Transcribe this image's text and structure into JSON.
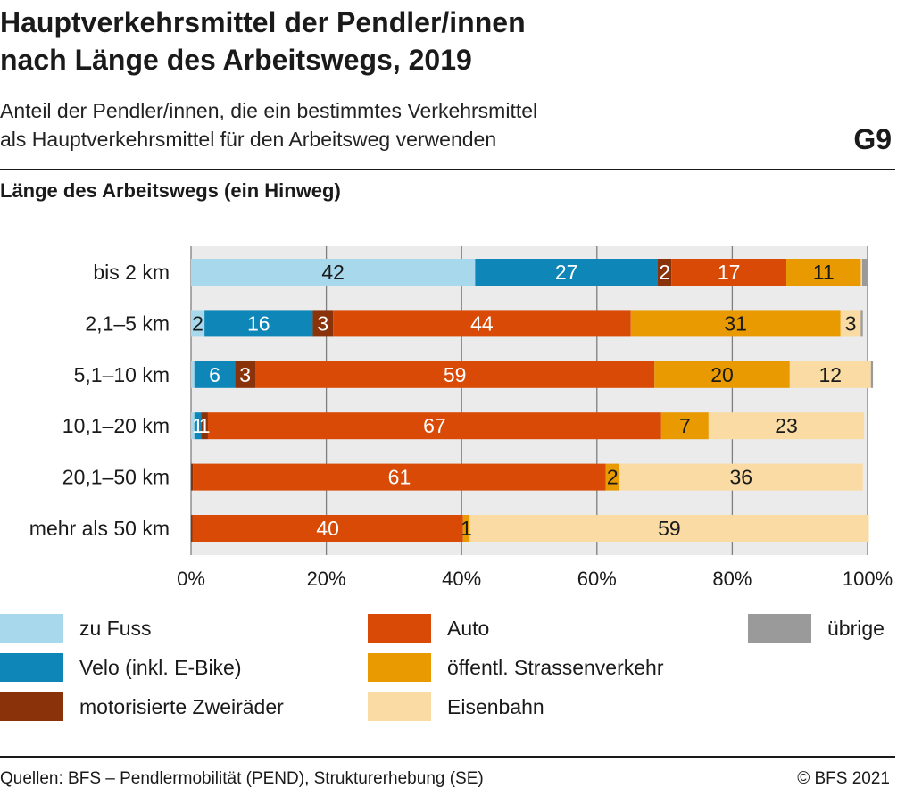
{
  "header": {
    "title_line1": "Hauptverkehrsmittel der Pendler/innen",
    "title_line2": "nach Länge des Arbeitswegs, 2019",
    "subtitle_line1": "Anteil der Pendler/innen, die ein bestimmtes Verkehrsmittel",
    "subtitle_line2": "als Hauptverkehrsmittel für den Arbeitsweg verwenden",
    "figure_id": "G9"
  },
  "chart_data": {
    "type": "bar",
    "orientation": "horizontal",
    "stacked": true,
    "ylabel": "Länge des Arbeitswegs (ein Hinweg)",
    "xlabel": "",
    "xlim": [
      0,
      100
    ],
    "x_ticks": [
      0,
      20,
      40,
      60,
      80,
      100
    ],
    "x_tick_labels": [
      "0%",
      "20%",
      "40%",
      "60%",
      "80%",
      "100%"
    ],
    "grid": true,
    "legend_position": "bottom",
    "categories": [
      "bis 2 km",
      "2,1–5 km",
      "5,1–10 km",
      "10,1–20 km",
      "20,1–50 km",
      "mehr als 50 km"
    ],
    "series": [
      {
        "name": "zu Fuss",
        "color": "#a8d8ec",
        "text_color": "#1a1a1a",
        "values": [
          42,
          2,
          0.5,
          0.5,
          0,
          0
        ],
        "labels": [
          "42",
          "2",
          "",
          "",
          "",
          ""
        ]
      },
      {
        "name": "Velo (inkl. E-Bike)",
        "color": "#0e86b8",
        "text_color": "#ffffff",
        "values": [
          27,
          16,
          6,
          1,
          0,
          0
        ],
        "labels": [
          "27",
          "16",
          "6",
          "1",
          "",
          ""
        ]
      },
      {
        "name": "motorisierte Zweiräder",
        "color": "#8a3209",
        "text_color": "#ffffff",
        "values": [
          2,
          3,
          3,
          1,
          0.3,
          0.2
        ],
        "labels": [
          "2",
          "3",
          "3",
          "1",
          "",
          ""
        ]
      },
      {
        "name": "Auto",
        "color": "#d84a05",
        "text_color": "#ffffff",
        "values": [
          17,
          44,
          59,
          67,
          61,
          40
        ],
        "labels": [
          "17",
          "44",
          "59",
          "67",
          "61",
          "40"
        ]
      },
      {
        "name": "öffentl. Strassenverkehr",
        "color": "#e89a00",
        "text_color": "#1a1a1a",
        "values": [
          11,
          31,
          20,
          7,
          2,
          1
        ],
        "labels": [
          "11",
          "31",
          "20",
          "7",
          "2",
          "1"
        ]
      },
      {
        "name": "Eisenbahn",
        "color": "#f9dba3",
        "text_color": "#1a1a1a",
        "values": [
          0.2,
          3,
          12,
          23,
          36,
          59
        ],
        "labels": [
          "",
          "3",
          "12",
          "23",
          "36",
          "59"
        ]
      },
      {
        "name": "übrige",
        "color": "#9a9a9a",
        "text_color": "#1a1a1a",
        "values": [
          0.8,
          0.3,
          0.3,
          0,
          0,
          0
        ],
        "labels": [
          "",
          "",
          "",
          "",
          "",
          ""
        ]
      }
    ]
  },
  "footer": {
    "source": "Quellen: BFS – Pendlermobilität (PEND), Strukturerhebung (SE)",
    "copyright": "© BFS 2021"
  }
}
